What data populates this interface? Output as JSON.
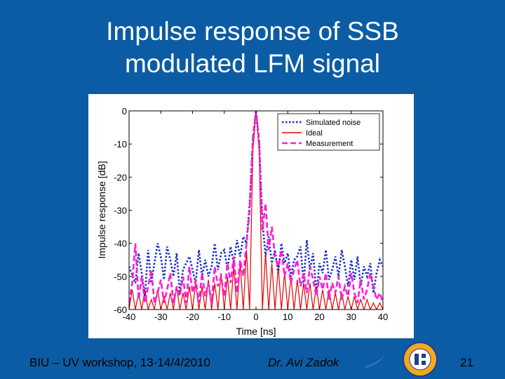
{
  "slide": {
    "title_line1": "Impulse response of SSB",
    "title_line2": "modulated LFM signal",
    "footer_left": "BIU – UV workshop, 13-14/4/2010",
    "footer_author": "Dr. Avi Zadok",
    "page_number": "21",
    "logo_icon": "bar-ilan-university-seal-icon",
    "logo_text": "Bar-Ilan University"
  },
  "chart_data": {
    "type": "line",
    "xlabel": "Time [ns]",
    "ylabel": "Impulse response [dB]",
    "xlim": [
      -40,
      40
    ],
    "ylim": [
      -60,
      0
    ],
    "xticks": [
      "-40",
      "-30",
      "-20",
      "-10",
      "0",
      "10",
      "20",
      "30",
      "40"
    ],
    "yticks": [
      "0",
      "-10",
      "-20",
      "-30",
      "-40",
      "-50",
      "-60"
    ],
    "legend_position": "top-right",
    "grid": false,
    "series": [
      {
        "name": "Simulated noise",
        "color": "#1a2fc9",
        "style": "dotted",
        "x": [
          -40,
          -38,
          -37,
          -36,
          -35,
          -34,
          -33,
          -32,
          -31,
          -30,
          -29,
          -28,
          -27,
          -26,
          -25,
          -24,
          -23,
          -22,
          -21,
          -20,
          -19,
          -18,
          -17,
          -16,
          -15,
          -14,
          -13,
          -12,
          -11,
          -10,
          -9,
          -8,
          -7,
          -6,
          -5,
          -4,
          -3,
          -2,
          -1,
          0,
          1,
          2,
          3,
          4,
          5,
          6,
          7,
          8,
          9,
          10,
          11,
          12,
          13,
          14,
          15,
          16,
          17,
          18,
          19,
          20,
          21,
          22,
          23,
          24,
          25,
          26,
          27,
          28,
          29,
          30,
          31,
          32,
          33,
          34,
          35,
          36,
          37,
          38,
          39,
          40
        ],
        "y": [
          -47,
          -52,
          -43,
          -49,
          -56,
          -42,
          -52,
          -46,
          -40,
          -44,
          -51,
          -41,
          -45,
          -50,
          -43,
          -55,
          -48,
          -46,
          -44,
          -48,
          -52,
          -42,
          -50,
          -45,
          -50,
          -47,
          -40,
          -48,
          -43,
          -42,
          -48,
          -41,
          -46,
          -39,
          -44,
          -38,
          -40,
          -28,
          -10,
          0,
          -10,
          -33,
          -44,
          -38,
          -46,
          -42,
          -49,
          -40,
          -46,
          -43,
          -50,
          -45,
          -44,
          -41,
          -52,
          -39,
          -48,
          -43,
          -55,
          -46,
          -49,
          -42,
          -51,
          -48,
          -44,
          -50,
          -42,
          -47,
          -53,
          -45,
          -51,
          -44,
          -53,
          -47,
          -50,
          -46,
          -55,
          -49,
          -45,
          -47
        ]
      },
      {
        "name": "Ideal",
        "color": "#e60000",
        "style": "solid",
        "x": [
          -40,
          -39,
          -38,
          -37,
          -36,
          -35,
          -34,
          -33,
          -32,
          -31,
          -30,
          -29,
          -28,
          -27,
          -26,
          -25,
          -24,
          -23,
          -22,
          -21,
          -20,
          -19,
          -18,
          -17,
          -16,
          -15,
          -14,
          -13,
          -12,
          -11,
          -10,
          -9,
          -8,
          -7,
          -6,
          -5,
          -4,
          -3,
          -2,
          -1,
          0,
          1,
          2,
          3,
          4,
          5,
          6,
          7,
          8,
          9,
          10,
          11,
          12,
          13,
          14,
          15,
          16,
          17,
          18,
          19,
          20,
          21,
          22,
          23,
          24,
          25,
          26,
          27,
          28,
          29,
          30,
          31,
          32,
          33,
          34,
          35,
          36,
          37,
          38,
          39,
          40
        ],
        "y": [
          -60,
          -54,
          -60,
          -55,
          -60,
          -54,
          -60,
          -57,
          -60,
          -54,
          -60,
          -56,
          -60,
          -55,
          -60,
          -53,
          -60,
          -55,
          -60,
          -53,
          -60,
          -52,
          -60,
          -53,
          -60,
          -51,
          -60,
          -52,
          -60,
          -49,
          -60,
          -50,
          -60,
          -47,
          -60,
          -46,
          -60,
          -42,
          -60,
          -12,
          0,
          -12,
          -60,
          -43,
          -60,
          -46,
          -60,
          -47,
          -60,
          -49,
          -60,
          -50,
          -60,
          -51,
          -60,
          -52,
          -60,
          -52,
          -60,
          -53,
          -60,
          -54,
          -60,
          -54,
          -60,
          -55,
          -60,
          -55,
          -60,
          -56,
          -60,
          -56,
          -60,
          -57,
          -60,
          -57,
          -60,
          -58,
          -60,
          -58,
          -60
        ]
      },
      {
        "name": "Measurement",
        "color": "#ff1ad9",
        "style": "dashed",
        "x": [
          -40,
          -39,
          -38,
          -37,
          -36,
          -35,
          -34,
          -33,
          -32,
          -31,
          -30,
          -29,
          -28,
          -27,
          -26,
          -25,
          -24,
          -23,
          -22,
          -21,
          -20,
          -19,
          -18,
          -17,
          -16,
          -15,
          -14,
          -13,
          -12,
          -11,
          -10,
          -9,
          -8,
          -7,
          -6,
          -5,
          -4,
          -3,
          -2,
          -1,
          0,
          1,
          2,
          3,
          4,
          5,
          6,
          7,
          8,
          9,
          10,
          11,
          12,
          13,
          14,
          15,
          16,
          17,
          18,
          19,
          20,
          21,
          22,
          23,
          24,
          25,
          26,
          27,
          28,
          29,
          30,
          31,
          32,
          33,
          34,
          35,
          36,
          37,
          38,
          39,
          40
        ],
        "y": [
          -58,
          -52,
          -40,
          -57,
          -50,
          -58,
          -53,
          -48,
          -58,
          -55,
          -51,
          -58,
          -54,
          -49,
          -58,
          -53,
          -56,
          -50,
          -58,
          -47,
          -55,
          -51,
          -58,
          -49,
          -56,
          -52,
          -58,
          -47,
          -53,
          -50,
          -56,
          -46,
          -52,
          -44,
          -55,
          -45,
          -50,
          -40,
          -30,
          -8,
          0,
          -9,
          -36,
          -28,
          -42,
          -35,
          -44,
          -47,
          -42,
          -50,
          -46,
          -52,
          -48,
          -45,
          -53,
          -49,
          -55,
          -47,
          -51,
          -56,
          -50,
          -54,
          -49,
          -57,
          -52,
          -55,
          -50,
          -57,
          -53,
          -56,
          -49,
          -55,
          -58,
          -51,
          -57,
          -54,
          -49,
          -53,
          -57,
          -55,
          -58
        ]
      }
    ]
  }
}
